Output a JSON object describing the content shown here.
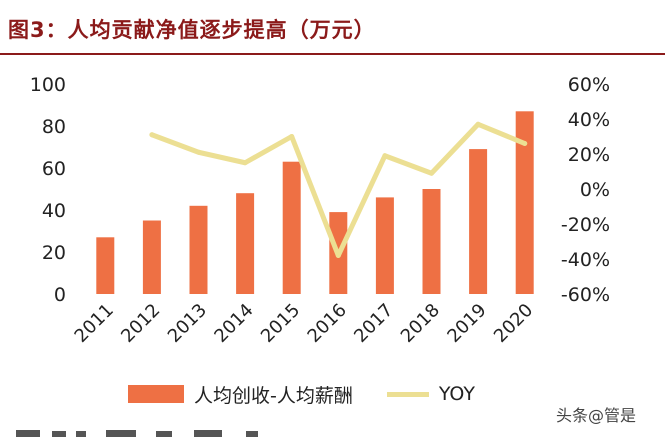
{
  "figure": {
    "title": "图3：人均贡献净值逐步提高（万元）"
  },
  "watermark": "头条@管是",
  "colors": {
    "title": "#8b1a1a",
    "bar": "#ee7044",
    "line": "#ecdf93",
    "axis_text": "#222222"
  },
  "chart_data": {
    "type": "bar",
    "categories": [
      "2011",
      "2012",
      "2013",
      "2014",
      "2015",
      "2016",
      "2017",
      "2018",
      "2019",
      "2020"
    ],
    "series": [
      {
        "name": "人均创收-人均薪酬",
        "type": "bar",
        "axis": "left",
        "values": [
          27,
          35,
          42,
          48,
          63,
          39,
          46,
          50,
          69,
          87
        ]
      },
      {
        "name": "YOY",
        "type": "line",
        "axis": "right",
        "values": [
          null,
          31,
          21,
          15,
          30,
          -38,
          19,
          9,
          37,
          26
        ]
      }
    ],
    "y_left": {
      "ylim": [
        0,
        100
      ],
      "ticks": [
        "0",
        "20",
        "40",
        "60",
        "80",
        "100"
      ]
    },
    "y_right": {
      "ylim": [
        -60,
        60
      ],
      "ticks": [
        "-60%",
        "-40%",
        "-20%",
        "0%",
        "20%",
        "40%",
        "60%"
      ]
    },
    "grid": false,
    "legend": "bottom"
  }
}
